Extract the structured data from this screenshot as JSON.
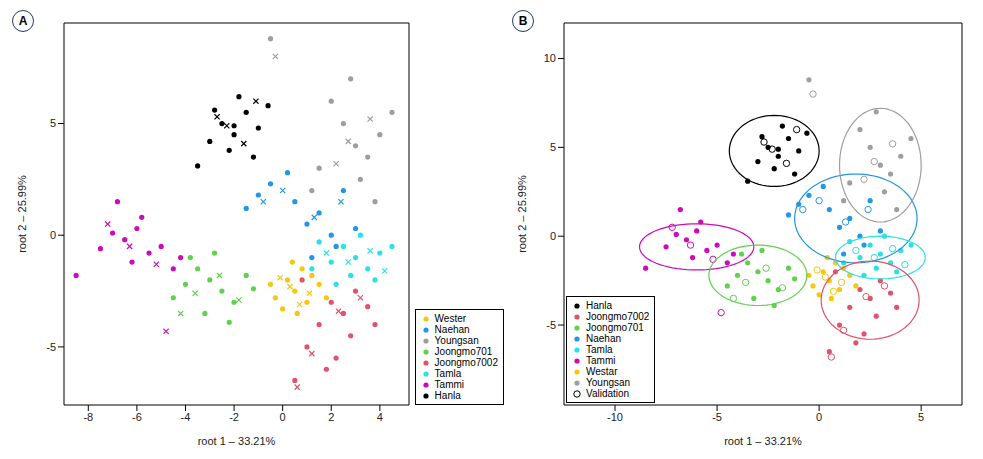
{
  "chart_data": [
    {
      "type": "scatter",
      "title": "A",
      "x_label": "root 1 – 33.21%",
      "y_label": "root 2 – 25.99%",
      "xlim": [
        -9,
        5.2
      ],
      "ylim": [
        -7.6,
        9.5
      ],
      "xticks": [
        -8,
        -6,
        -4,
        -2,
        0,
        2,
        4
      ],
      "yticks": [
        -5,
        0,
        5
      ],
      "legend": "bottom right",
      "series": [
        {
          "name": "Wester",
          "color": "#F5C710",
          "marker": "circle",
          "x": [
            0.5,
            0.2,
            1.0,
            -0.3,
            0.8,
            1.5,
            0.0,
            1.2,
            0.6,
            -0.5,
            1.8,
            0.4
          ],
          "y": [
            -2.5,
            -2.0,
            -3.0,
            -2.8,
            -1.5,
            -2.2,
            -3.3,
            -1.8,
            -3.5,
            -2.2,
            -2.8,
            -1.2
          ],
          "validation": {
            "marker": "x",
            "x": [
              0.3,
              1.1,
              -0.1,
              0.7
            ],
            "y": [
              -2.3,
              -2.6,
              -1.9,
              -3.1
            ]
          }
        },
        {
          "name": "Naehan",
          "color": "#2297E6",
          "marker": "circle",
          "x": [
            1.0,
            1.5,
            2.0,
            0.5,
            2.5,
            -1.0,
            -0.5,
            3.0,
            1.2,
            2.2,
            -1.5,
            0.2
          ],
          "y": [
            0.5,
            1.0,
            0.0,
            1.5,
            2.0,
            1.8,
            2.3,
            0.3,
            -1.0,
            -0.5,
            1.2,
            2.8
          ],
          "validation": {
            "marker": "x",
            "x": [
              1.3,
              2.4,
              0.0,
              -0.8
            ],
            "y": [
              0.8,
              1.5,
              2.0,
              1.5
            ]
          }
        },
        {
          "name": "Youngsan",
          "color": "#9E9E9E",
          "marker": "circle",
          "x": [
            3.0,
            2.5,
            3.5,
            2.0,
            4.0,
            3.2,
            1.5,
            4.5,
            2.8,
            -0.5,
            1.2,
            3.8
          ],
          "y": [
            4.0,
            5.0,
            3.5,
            6.0,
            4.5,
            2.5,
            3.0,
            5.5,
            7.0,
            8.8,
            2.0,
            1.5
          ],
          "validation": {
            "marker": "x",
            "x": [
              2.7,
              3.6,
              2.2,
              -0.3
            ],
            "y": [
              4.2,
              5.2,
              3.2,
              8.0
            ]
          }
        },
        {
          "name": "Joongmo701",
          "color": "#61D04F",
          "marker": "circle",
          "x": [
            -3.0,
            -2.5,
            -3.5,
            -2.0,
            -4.0,
            -1.5,
            -3.2,
            -2.8,
            -4.5,
            -1.2,
            -3.8,
            -2.2
          ],
          "y": [
            -2.0,
            -2.5,
            -1.5,
            -3.0,
            -2.2,
            -1.8,
            -3.5,
            -0.8,
            -2.8,
            -2.4,
            -1.0,
            -3.9
          ],
          "validation": {
            "marker": "x",
            "x": [
              -2.6,
              -3.6,
              -1.8,
              -4.2
            ],
            "y": [
              -1.8,
              -2.6,
              -2.9,
              -3.5
            ]
          }
        },
        {
          "name": "Joongmo7002",
          "color": "#DF536B",
          "marker": "circle",
          "x": [
            2.0,
            2.5,
            3.0,
            1.5,
            3.5,
            1.0,
            2.2,
            0.5,
            2.8,
            1.8,
            3.8,
            0.8
          ],
          "y": [
            -3.0,
            -3.5,
            -2.5,
            -4.0,
            -3.2,
            -5.0,
            -5.5,
            -6.5,
            -4.5,
            -6.0,
            -4.0,
            -2.0
          ],
          "validation": {
            "marker": "x",
            "x": [
              2.3,
              1.2,
              3.2,
              0.6
            ],
            "y": [
              -3.4,
              -5.3,
              -2.8,
              -6.8
            ]
          }
        },
        {
          "name": "Tamla",
          "color": "#28E2E5",
          "marker": "circle",
          "x": [
            3.0,
            2.5,
            3.5,
            2.0,
            4.0,
            1.5,
            3.8,
            2.8,
            4.5,
            1.2,
            3.2,
            2.2
          ],
          "y": [
            -1.0,
            -0.5,
            -1.5,
            -1.2,
            -0.8,
            -0.3,
            -2.0,
            -1.8,
            -0.5,
            -1.5,
            0.0,
            -2.2
          ],
          "validation": {
            "marker": "x",
            "x": [
              2.7,
              3.6,
              1.8,
              4.2
            ],
            "y": [
              -1.2,
              -0.7,
              -0.8,
              -1.6
            ]
          }
        },
        {
          "name": "Tammi",
          "color": "#CD0BBC",
          "marker": "circle",
          "x": [
            -6.5,
            -6.0,
            -5.5,
            -7.0,
            -5.0,
            -6.2,
            -4.5,
            -7.5,
            -5.8,
            -8.5,
            -4.2,
            -6.8
          ],
          "y": [
            -0.2,
            0.3,
            -0.8,
            0.1,
            -0.5,
            -1.2,
            -1.5,
            -0.6,
            0.8,
            -1.8,
            -1.0,
            1.5
          ],
          "validation": {
            "marker": "x",
            "x": [
              -6.3,
              -5.2,
              -7.2,
              -4.8
            ],
            "y": [
              -0.5,
              -1.3,
              0.5,
              -4.3
            ]
          }
        },
        {
          "name": "Hanla",
          "color": "#000000",
          "marker": "circle",
          "x": [
            -2.5,
            -2.0,
            -1.5,
            -3.0,
            -1.0,
            -2.2,
            -1.8,
            -2.8,
            -1.2,
            -3.5,
            -0.6,
            -2.0
          ],
          "y": [
            5.0,
            4.5,
            5.5,
            4.2,
            4.8,
            3.8,
            6.2,
            5.6,
            3.5,
            3.1,
            5.8,
            4.9
          ],
          "validation": {
            "marker": "x",
            "x": [
              -2.3,
              -1.6,
              -2.7,
              -1.1
            ],
            "y": [
              4.9,
              4.1,
              5.3,
              6.0
            ]
          }
        }
      ]
    },
    {
      "type": "scatter",
      "title": "B",
      "x_label": "root 1 – 33.21%",
      "y_label": "root 2 – 25.99%",
      "xlim": [
        -12.5,
        7
      ],
      "ylim": [
        -9.5,
        12
      ],
      "xticks": [
        -10,
        -5,
        0,
        5
      ],
      "yticks": [
        -5,
        0,
        5,
        10
      ],
      "legend": "bottom left",
      "validation_label": "Validation",
      "validation_marker": "open_circle",
      "series": [
        {
          "name": "Hanla",
          "color": "#000000",
          "marker": "circle",
          "x": [
            -2.5,
            -2.0,
            -1.5,
            -3.0,
            -1.0,
            -2.2,
            -1.8,
            -2.8,
            -1.2,
            -3.5,
            -0.6,
            -2.0
          ],
          "y": [
            5.0,
            4.5,
            5.5,
            4.2,
            4.8,
            3.8,
            6.2,
            5.6,
            3.5,
            3.1,
            5.8,
            4.9
          ],
          "validation": {
            "marker": "open_circle",
            "x": [
              -2.3,
              -1.6,
              -2.7,
              -1.1
            ],
            "y": [
              4.9,
              4.1,
              5.3,
              6.0
            ]
          }
        },
        {
          "name": "Joongmo7002",
          "color": "#DF536B",
          "marker": "circle",
          "x": [
            2.0,
            2.5,
            3.0,
            1.5,
            3.5,
            1.0,
            2.2,
            0.5,
            2.8,
            1.8,
            3.8,
            0.8
          ],
          "y": [
            -3.0,
            -3.5,
            -2.5,
            -4.0,
            -3.2,
            -5.0,
            -5.5,
            -6.5,
            -4.5,
            -6.0,
            -4.0,
            -2.0
          ],
          "validation": {
            "marker": "open_circle",
            "x": [
              2.3,
              1.2,
              3.2,
              0.6
            ],
            "y": [
              -3.4,
              -5.3,
              -2.8,
              -6.8
            ]
          }
        },
        {
          "name": "Joongmo701",
          "color": "#61D04F",
          "marker": "circle",
          "x": [
            -3.0,
            -2.5,
            -3.5,
            -2.0,
            -4.0,
            -1.5,
            -3.2,
            -2.8,
            -4.5,
            -1.2,
            -3.8,
            -2.2
          ],
          "y": [
            -2.0,
            -2.5,
            -1.5,
            -3.0,
            -2.2,
            -1.8,
            -3.5,
            -0.8,
            -2.8,
            -2.4,
            -1.0,
            -3.9
          ],
          "validation": {
            "marker": "open_circle",
            "x": [
              -2.6,
              -3.6,
              -1.8,
              -4.2
            ],
            "y": [
              -1.8,
              -2.6,
              -2.9,
              -3.5
            ]
          }
        },
        {
          "name": "Naehan",
          "color": "#2297E6",
          "marker": "circle",
          "x": [
            1.0,
            1.5,
            2.0,
            0.5,
            2.5,
            -1.0,
            -0.5,
            3.0,
            1.2,
            2.2,
            -1.5,
            0.2
          ],
          "y": [
            0.5,
            1.0,
            0.0,
            1.5,
            2.0,
            1.8,
            2.3,
            0.3,
            -1.0,
            -0.5,
            1.2,
            2.8
          ],
          "validation": {
            "marker": "open_circle",
            "x": [
              1.3,
              2.4,
              0.0,
              -0.8
            ],
            "y": [
              0.8,
              1.5,
              2.0,
              1.5
            ]
          }
        },
        {
          "name": "Tamla",
          "color": "#28E2E5",
          "marker": "circle",
          "x": [
            3.0,
            2.5,
            3.5,
            2.0,
            4.0,
            1.5,
            3.8,
            2.8,
            4.5,
            1.2,
            3.2,
            2.2
          ],
          "y": [
            -1.0,
            -0.5,
            -1.5,
            -1.2,
            -0.8,
            -0.3,
            -2.0,
            -1.8,
            -0.5,
            -1.5,
            0.0,
            -2.2
          ],
          "validation": {
            "marker": "open_circle",
            "x": [
              2.7,
              3.6,
              1.8,
              4.2
            ],
            "y": [
              -1.2,
              -0.7,
              -0.8,
              -1.6
            ]
          }
        },
        {
          "name": "Tammi",
          "color": "#CD0BBC",
          "marker": "circle",
          "x": [
            -6.5,
            -6.0,
            -5.5,
            -7.0,
            -5.0,
            -6.2,
            -4.5,
            -7.5,
            -5.8,
            -8.5,
            -4.2,
            -6.8
          ],
          "y": [
            -0.2,
            0.3,
            -0.8,
            0.1,
            -0.5,
            -1.2,
            -1.5,
            -0.6,
            0.8,
            -1.8,
            -1.0,
            1.5
          ],
          "validation": {
            "marker": "open_circle",
            "x": [
              -6.3,
              -5.2,
              -7.2,
              -4.8
            ],
            "y": [
              -0.5,
              -1.3,
              0.5,
              -4.3
            ]
          }
        },
        {
          "name": "Westar",
          "color": "#F5C710",
          "marker": "circle",
          "x": [
            0.5,
            0.2,
            1.0,
            -0.3,
            0.8,
            1.5,
            0.0,
            1.2,
            0.6,
            -0.5,
            1.8,
            0.4
          ],
          "y": [
            -2.5,
            -2.0,
            -3.0,
            -2.8,
            -1.5,
            -2.2,
            -3.3,
            -1.8,
            -3.5,
            -2.2,
            -2.8,
            -1.2
          ],
          "validation": {
            "marker": "open_circle",
            "x": [
              0.3,
              1.1,
              -0.1,
              0.7
            ],
            "y": [
              -2.3,
              -2.6,
              -1.9,
              -3.1
            ]
          }
        },
        {
          "name": "Youngsan",
          "color": "#9E9E9E",
          "marker": "circle",
          "x": [
            3.0,
            2.5,
            3.5,
            2.0,
            4.0,
            3.2,
            1.5,
            4.5,
            2.8,
            -0.5,
            1.2,
            3.8
          ],
          "y": [
            4.0,
            5.0,
            3.5,
            6.0,
            4.5,
            2.5,
            3.0,
            5.5,
            7.0,
            8.8,
            2.0,
            1.5
          ],
          "validation": {
            "marker": "open_circle",
            "x": [
              2.7,
              3.6,
              2.2,
              -0.3
            ],
            "y": [
              4.2,
              5.2,
              3.2,
              8.0
            ]
          }
        }
      ],
      "ellipses": [
        {
          "name": "Hanla",
          "cx": -2.2,
          "cy": 4.8,
          "rx": 2.2,
          "ry": 2.0
        },
        {
          "name": "Tammi",
          "cx": -6.0,
          "cy": -0.6,
          "rx": 2.8,
          "ry": 1.3
        },
        {
          "name": "Joongmo701",
          "cx": -3.0,
          "cy": -2.2,
          "rx": 2.4,
          "ry": 1.7
        },
        {
          "name": "Naehan",
          "cx": 1.8,
          "cy": 1.0,
          "rx": 3.0,
          "ry": 2.5
        },
        {
          "name": "Youngsan",
          "cx": 3.0,
          "cy": 4.0,
          "rx": 2.0,
          "ry": 3.2
        },
        {
          "name": "Tamla",
          "cx": 3.0,
          "cy": -1.2,
          "rx": 2.2,
          "ry": 1.2
        },
        {
          "name": "Joongmo7002",
          "cx": 2.5,
          "cy": -3.6,
          "rx": 2.4,
          "ry": 2.2
        }
      ]
    }
  ]
}
